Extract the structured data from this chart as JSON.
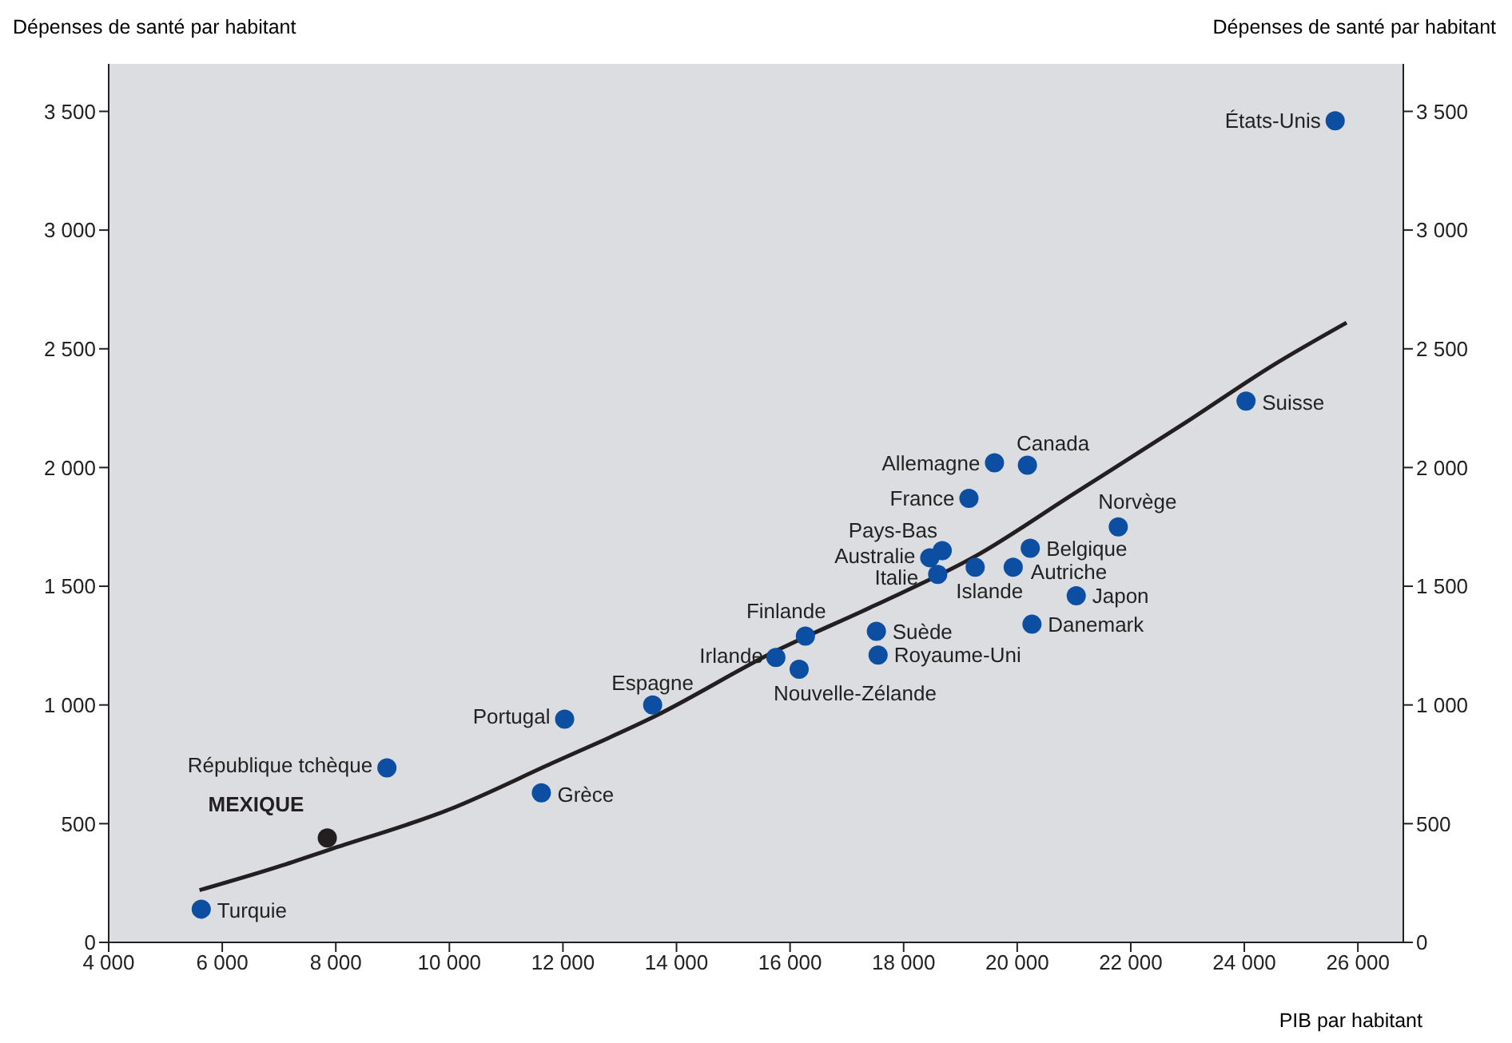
{
  "chart_data": {
    "type": "scatter",
    "ylabel": "Dépenses de santé par habitant",
    "y2label": "Dépenses de santé par habitant",
    "xlabel": "PIB par habitant",
    "xlim": [
      4000,
      26800
    ],
    "xticks": [
      {
        "value": 4000,
        "label": "4 000"
      },
      {
        "value": 6000,
        "label": "6 000"
      },
      {
        "value": 8000,
        "label": "8 000"
      },
      {
        "value": 10000,
        "label": "10 000"
      },
      {
        "value": 12000,
        "label": "12 000"
      },
      {
        "value": 14000,
        "label": "14 000"
      },
      {
        "value": 16000,
        "label": "16 000"
      },
      {
        "value": 18000,
        "label": "18 000"
      },
      {
        "value": 20000,
        "label": "20 000"
      },
      {
        "value": 22000,
        "label": "22 000"
      },
      {
        "value": 24000,
        "label": "24 000"
      },
      {
        "value": 26000,
        "label": "26 000"
      }
    ],
    "ylim": [
      0,
      3700
    ],
    "yticks": [
      0,
      500,
      {
        "value": 1000,
        "label": "1 000"
      },
      {
        "value": 1500,
        "label": "1 500"
      },
      {
        "value": 2000,
        "label": "2 000"
      },
      {
        "value": 2500,
        "label": "2 500"
      },
      {
        "value": 3000,
        "label": "3 000"
      },
      {
        "value": 3500,
        "label": "3 500"
      }
    ],
    "y2lim": [
      0,
      3700
    ],
    "y2ticks": [
      0,
      500,
      {
        "value": 1000,
        "label": "1 000"
      },
      {
        "value": 1500,
        "label": "1 500"
      },
      {
        "value": 2000,
        "label": "2 000"
      },
      {
        "value": 2500,
        "label": "2 500"
      },
      {
        "value": 3000,
        "label": "3 000"
      },
      {
        "value": 3500,
        "label": "3 500"
      }
    ],
    "grid": false,
    "legend": false,
    "marker": "circle",
    "series": [
      {
        "color": "#0b4ea2",
        "x": [
          25600,
          24030,
          20180,
          19600,
          19150,
          21780,
          18680,
          18460,
          20230,
          18600,
          19260,
          19930,
          21040,
          20260,
          17520,
          17550,
          16270,
          15750,
          16160,
          13580,
          12030,
          11620,
          8900,
          5630
        ],
        "values": [
          3460,
          2280,
          2010,
          2020,
          1870,
          1750,
          1650,
          1620,
          1660,
          1550,
          1580,
          1580,
          1460,
          1340,
          1310,
          1210,
          1290,
          1200,
          1150,
          1000,
          940,
          630,
          735,
          140
        ]
      },
      {
        "name": "MEXIQUE",
        "color": "#231f20",
        "x": [
          7850
        ],
        "values": [
          440
        ]
      },
      {
        "type": "line",
        "color": "#231f20",
        "marker": "none",
        "x": [
          5600,
          7000,
          7880,
          10000,
          11810,
          13600,
          15770,
          17500,
          19290,
          21000,
          22970,
          24500,
          25800
        ],
        "values": [
          220,
          320,
          390,
          560,
          755,
          950,
          1230,
          1420,
          1630,
          1890,
          2190,
          2430,
          2610
        ]
      }
    ],
    "annotations": [
      {
        "text": "États-Unis",
        "x": 25600,
        "y": 3460
      },
      {
        "text": "Suisse",
        "x": 24030,
        "y": 2280
      },
      {
        "text": "Canada",
        "x": 20180,
        "y": 2010
      },
      {
        "text": "Allemagne",
        "x": 19600,
        "y": 2020
      },
      {
        "text": "France",
        "x": 19150,
        "y": 1870
      },
      {
        "text": "Norvège",
        "x": 21780,
        "y": 1750
      },
      {
        "text": "Pays-Bas",
        "x": 18680,
        "y": 1650
      },
      {
        "text": "Australie",
        "x": 18460,
        "y": 1620
      },
      {
        "text": "Belgique",
        "x": 20230,
        "y": 1660
      },
      {
        "text": "Italie",
        "x": 18600,
        "y": 1550
      },
      {
        "text": "Islande",
        "x": 19260,
        "y": 1580
      },
      {
        "text": "Autriche",
        "x": 19930,
        "y": 1580
      },
      {
        "text": "Japon",
        "x": 21040,
        "y": 1460
      },
      {
        "text": "Danemark",
        "x": 20260,
        "y": 1340
      },
      {
        "text": "Suède",
        "x": 17520,
        "y": 1310
      },
      {
        "text": "Royaume-Uni",
        "x": 17550,
        "y": 1210
      },
      {
        "text": "Finlande",
        "x": 16270,
        "y": 1290
      },
      {
        "text": "Irlande",
        "x": 15750,
        "y": 1200
      },
      {
        "text": "Nouvelle-Zélande",
        "x": 16160,
        "y": 1150
      },
      {
        "text": "Espagne",
        "x": 13580,
        "y": 1000
      },
      {
        "text": "Portugal",
        "x": 12030,
        "y": 940
      },
      {
        "text": "Grèce",
        "x": 11620,
        "y": 630
      },
      {
        "text": "République tchèque",
        "x": 8900,
        "y": 735
      },
      {
        "text": "Turquie",
        "x": 5630,
        "y": 140
      }
    ]
  }
}
